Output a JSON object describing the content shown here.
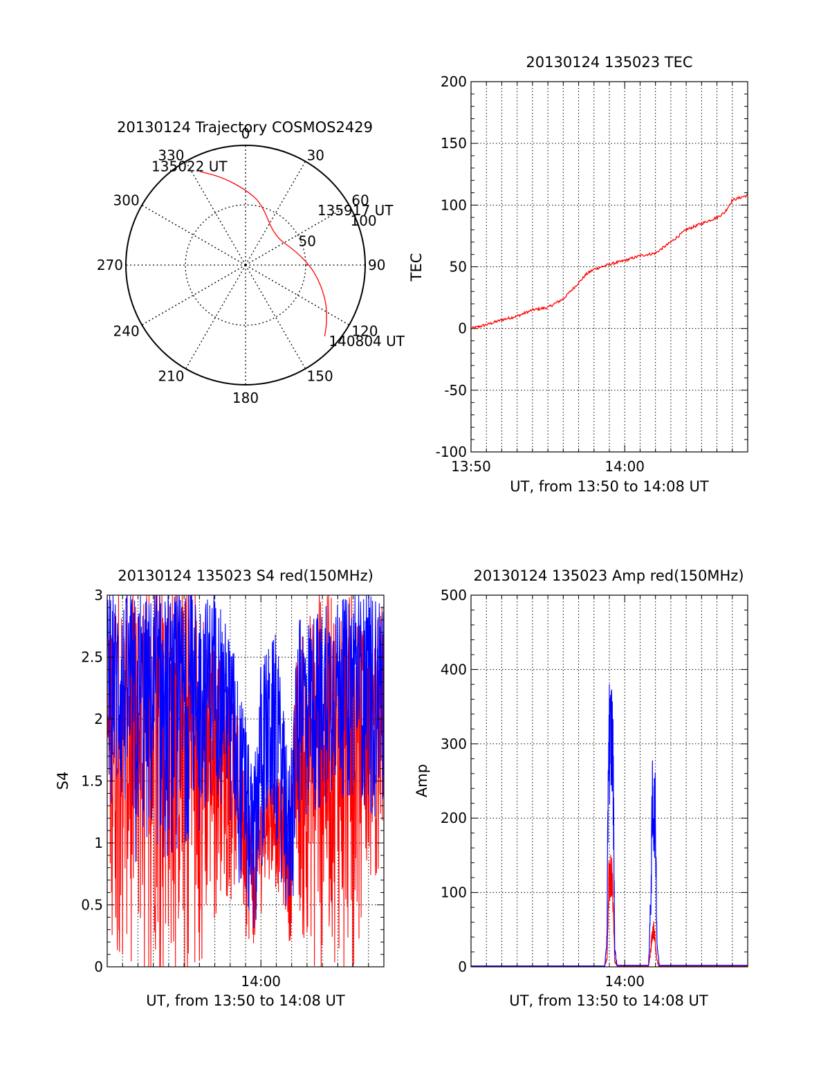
{
  "chart_data": [
    {
      "id": "trajectory",
      "type": "polar",
      "title": "20130124 Trajectory COSMOS2429",
      "azimuth_labels": [
        "0",
        "30",
        "60",
        "90",
        "120",
        "150",
        "180",
        "210",
        "240",
        "270",
        "300",
        "330"
      ],
      "radial_labels": [
        "50",
        "100"
      ],
      "radial_range": [
        0,
        100
      ],
      "grid": true,
      "series": [
        {
          "color": "#ff0000",
          "points": [
            {
              "az": 334,
              "r": 87
            },
            {
              "az": 345,
              "r": 76
            },
            {
              "az": 0,
              "r": 63
            },
            {
              "az": 15,
              "r": 53
            },
            {
              "az": 45,
              "r": 34
            },
            {
              "az": 75,
              "r": 44
            },
            {
              "az": 95,
              "r": 58
            },
            {
              "az": 113,
              "r": 73
            },
            {
              "az": 125,
              "r": 83
            },
            {
              "az": 132,
              "r": 89
            }
          ]
        }
      ],
      "annotations": [
        {
          "text": "135022 UT",
          "az": 334,
          "r": 87
        },
        {
          "text": "135917 UT",
          "az": 66,
          "r": 67
        },
        {
          "text": "140804 UT",
          "az": 132,
          "r": 89
        }
      ]
    },
    {
      "id": "tec",
      "type": "line",
      "title": "20130124 135023 TEC",
      "xlabel": "UT, from 13:50 to 14:08 UT",
      "ylabel": "TEC",
      "xlim": [
        0,
        18
      ],
      "ylim": [
        -100,
        200
      ],
      "xticks": [
        {
          "x": 0,
          "label": "13:50"
        },
        {
          "x": 10,
          "label": "14:00"
        }
      ],
      "yticks": [
        -100,
        -50,
        0,
        50,
        100,
        150,
        200
      ],
      "grid": true,
      "series": [
        {
          "color": "#ff0000",
          "points": [
            [
              0,
              0
            ],
            [
              1,
              3
            ],
            [
              2,
              7
            ],
            [
              3,
              10
            ],
            [
              4,
              15
            ],
            [
              5,
              17
            ],
            [
              6,
              24
            ],
            [
              7,
              37
            ],
            [
              7.5,
              44
            ],
            [
              8,
              48
            ],
            [
              9,
              52
            ],
            [
              10,
              55
            ],
            [
              11,
              59
            ],
            [
              12,
              61
            ],
            [
              13,
              70
            ],
            [
              14,
              80
            ],
            [
              15,
              85
            ],
            [
              16,
              90
            ],
            [
              16.5,
              94
            ],
            [
              17,
              104
            ],
            [
              18,
              108
            ]
          ]
        }
      ]
    },
    {
      "id": "s4",
      "type": "line",
      "title": "20130124 135023 S4 red(150MHz)",
      "xlabel": "UT, from 13:50 to 14:08 UT",
      "ylabel": "S4",
      "xlim": [
        0,
        18
      ],
      "ylim": [
        0,
        3
      ],
      "xticks": [
        {
          "x": 10,
          "label": "14:00"
        }
      ],
      "yticks": [
        "0",
        "0.5",
        "1",
        "1.5",
        "2",
        "2.5",
        "3"
      ],
      "grid": true,
      "series": [
        {
          "color": "#ff0000",
          "envelope": [
            [
              0,
              0.2,
              3
            ],
            [
              2,
              0,
              3
            ],
            [
              4,
              0,
              3
            ],
            [
              6,
              0,
              3
            ],
            [
              7.5,
              0.6,
              2.4
            ],
            [
              8.5,
              0.5,
              2.0
            ],
            [
              9.2,
              0.15,
              1.4
            ],
            [
              9.6,
              0.2,
              1.2
            ],
            [
              10.5,
              0.7,
              1.6
            ],
            [
              11.4,
              0.5,
              1.5
            ],
            [
              11.8,
              0.15,
              1.1
            ],
            [
              12.3,
              0.4,
              2.5
            ],
            [
              13.5,
              0,
              3
            ],
            [
              15,
              0,
              3
            ],
            [
              16,
              0,
              3
            ],
            [
              17,
              0.6,
              2.5
            ],
            [
              18,
              0.9,
              3
            ]
          ]
        },
        {
          "color": "#0000ff",
          "envelope": [
            [
              0,
              1.4,
              3
            ],
            [
              2,
              0.8,
              3
            ],
            [
              4,
              0.9,
              3
            ],
            [
              6,
              1.1,
              3
            ],
            [
              7,
              1.4,
              3
            ],
            [
              8,
              1.2,
              2.7
            ],
            [
              9,
              0.3,
              2.0
            ],
            [
              9.5,
              0.1,
              1.5
            ],
            [
              10,
              0.8,
              2.5
            ],
            [
              11,
              1.0,
              2.7
            ],
            [
              11.8,
              0.1,
              1.6
            ],
            [
              12.5,
              1.2,
              2.8
            ],
            [
              14,
              1.3,
              2.9
            ],
            [
              16,
              1.4,
              3
            ],
            [
              17.5,
              1.2,
              3
            ],
            [
              18,
              1.3,
              3
            ]
          ]
        }
      ]
    },
    {
      "id": "amp",
      "type": "line",
      "title": "20130124 135023 Amp red(150MHz)",
      "xlabel": "UT, from 13:50 to 14:08 UT",
      "ylabel": "Amp",
      "xlim": [
        0,
        18
      ],
      "ylim": [
        0,
        500
      ],
      "xticks": [
        {
          "x": 10,
          "label": "14:00"
        }
      ],
      "yticks": [
        0,
        100,
        200,
        300,
        400,
        500
      ],
      "grid": true,
      "series": [
        {
          "color": "#ff0000",
          "points": [
            [
              0,
              1
            ],
            [
              8.7,
              1
            ],
            [
              8.85,
              15
            ],
            [
              8.95,
              150
            ],
            [
              9.1,
              165
            ],
            [
              9.2,
              140
            ],
            [
              9.35,
              10
            ],
            [
              9.5,
              1
            ],
            [
              11.55,
              1
            ],
            [
              11.7,
              30
            ],
            [
              11.8,
              65
            ],
            [
              11.95,
              60
            ],
            [
              12.05,
              20
            ],
            [
              12.2,
              1
            ],
            [
              18,
              1
            ]
          ]
        },
        {
          "color": "#0000ff",
          "points": [
            [
              0,
              1
            ],
            [
              8.7,
              1
            ],
            [
              8.85,
              50
            ],
            [
              8.95,
              420
            ],
            [
              9.05,
              380
            ],
            [
              9.15,
              410
            ],
            [
              9.25,
              330
            ],
            [
              9.35,
              30
            ],
            [
              9.5,
              2
            ],
            [
              11.55,
              2
            ],
            [
              11.7,
              120
            ],
            [
              11.8,
              285
            ],
            [
              11.9,
              270
            ],
            [
              12.0,
              260
            ],
            [
              12.1,
              40
            ],
            [
              12.25,
              2
            ],
            [
              18,
              2
            ]
          ]
        }
      ]
    }
  ]
}
